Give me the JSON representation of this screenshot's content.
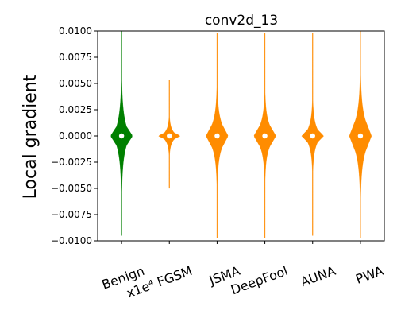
{
  "chart_data": {
    "type": "violin",
    "title": "conv2d_13",
    "ylabel": "Local gradient",
    "xlabel": "",
    "ylim": [
      -0.01,
      0.01
    ],
    "yticks": [
      0.01,
      0.0075,
      0.005,
      0.0025,
      0.0,
      -0.0025,
      -0.005,
      -0.0075,
      -0.01
    ],
    "ytick_labels": [
      "0.0100",
      "0.0075",
      "0.0050",
      "0.0025",
      "0.0000",
      "−0.0025",
      "−0.0050",
      "−0.0075",
      "−0.0100"
    ],
    "categories": [
      "Benign",
      "x1e⁴ FGSM",
      "JSMA",
      "DeepFool",
      "AUNA",
      "PWA"
    ],
    "colors": [
      "#008000",
      "#ff8c00",
      "#ff8c00",
      "#ff8c00",
      "#ff8c00",
      "#ff8c00"
    ],
    "median": [
      0.0,
      0.0,
      0.0,
      0.0,
      0.0,
      0.0
    ],
    "extent": [
      [
        -0.0095,
        0.01
      ],
      [
        -0.005,
        0.0053
      ],
      [
        -0.0097,
        0.0098
      ],
      [
        -0.0097,
        0.0098
      ],
      [
        -0.0095,
        0.0098
      ],
      [
        -0.0097,
        0.01
      ]
    ],
    "grid": false,
    "legend": "none"
  }
}
